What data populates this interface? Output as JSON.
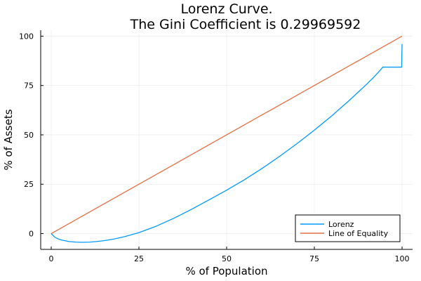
{
  "chart_data": {
    "type": "line",
    "title_line1": "Lorenz Curve.",
    "title_line2": "The Gini Coefficient is 0.29969592",
    "xlabel": "% of Population",
    "ylabel": "% of Assets",
    "xlim": [
      -3,
      103
    ],
    "ylim": [
      -8,
      103
    ],
    "x_ticks": [
      0,
      25,
      50,
      75,
      100
    ],
    "x_tick_labels": [
      "0",
      "25",
      "50",
      "75",
      "100"
    ],
    "y_ticks": [
      0,
      25,
      50,
      75,
      100
    ],
    "y_tick_labels": [
      "0",
      "25",
      "50",
      "75",
      "100"
    ],
    "grid": true,
    "legend_position": "bottom-right",
    "series": [
      {
        "name": "Lorenz",
        "color": "#009AFA",
        "x": [
          0,
          1,
          2,
          3,
          5,
          7,
          9,
          11,
          13,
          15,
          18,
          21,
          25,
          30,
          35,
          40,
          45,
          50,
          55,
          60,
          65,
          70,
          75,
          80,
          85,
          90,
          92,
          94,
          94.5,
          99.9,
          99.9,
          100
        ],
        "y": [
          0,
          -1.8,
          -2.7,
          -3.3,
          -4.0,
          -4.3,
          -4.4,
          -4.3,
          -4.0,
          -3.6,
          -2.7,
          -1.5,
          0.5,
          3.8,
          7.8,
          12.3,
          17.1,
          22.0,
          27.2,
          32.9,
          39.0,
          45.5,
          52.4,
          59.7,
          67.5,
          75.8,
          79.3,
          83.2,
          84.3,
          84.3,
          86.0,
          96.0
        ]
      },
      {
        "name": "Line of Equality",
        "color": "#E26F46",
        "x": [
          0,
          100
        ],
        "y": [
          0,
          100
        ]
      }
    ]
  }
}
